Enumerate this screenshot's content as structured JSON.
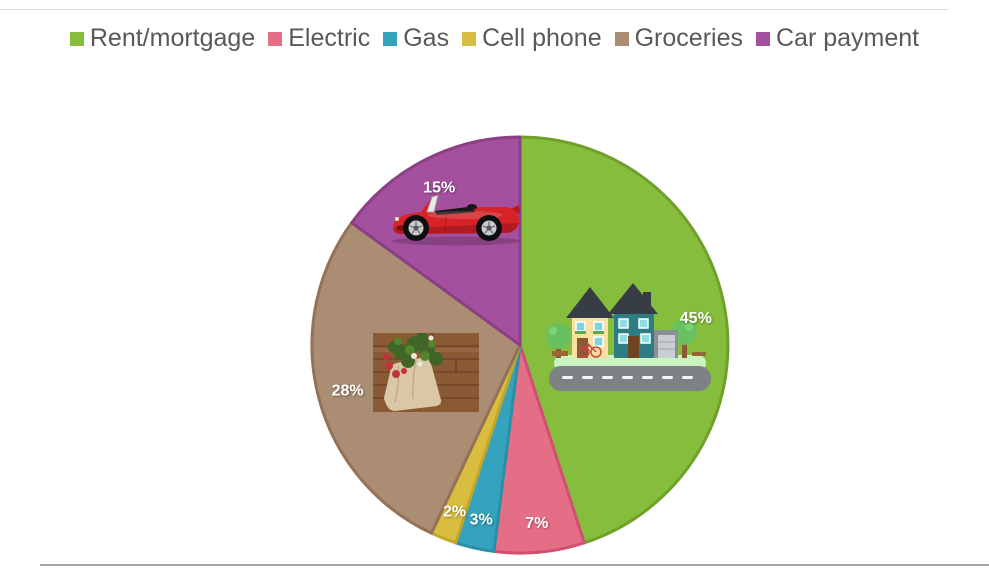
{
  "page": {
    "background": "#FFFFFF",
    "top_rule_color": "#D9D9D9",
    "bottom_rule_color": "#A6A6A6"
  },
  "chart_data": {
    "type": "pie",
    "title": "",
    "legend_position": "top",
    "start_angle_deg": 0,
    "direction": "clockwise",
    "label_color": "#FFFFFF",
    "categories": [
      "Rent/mortgage",
      "Electric",
      "Gas",
      "Cell phone",
      "Groceries",
      "Car payment"
    ],
    "series": [
      {
        "name": "Rent/mortgage",
        "value": 45,
        "label": "45%",
        "color": "#86BD3C",
        "border": "#6FA02C",
        "image": "houses-illustration"
      },
      {
        "name": "Electric",
        "value": 7,
        "label": "7%",
        "color": "#E56E87",
        "border": "#D14F70"
      },
      {
        "name": "Gas",
        "value": 3,
        "label": "3%",
        "color": "#35A3BD",
        "border": "#2A8FA9"
      },
      {
        "name": "Cell phone",
        "value": 2,
        "label": "2%",
        "color": "#D9BD3F",
        "border": "#C2A72F"
      },
      {
        "name": "Groceries",
        "value": 28,
        "label": "28%",
        "color": "#AA8D73",
        "border": "#937257",
        "image": "groceries-photo"
      },
      {
        "name": "Car payment",
        "value": 15,
        "label": "15%",
        "color": "#A4509E",
        "border": "#8C3F85",
        "image": "car-illustration"
      }
    ]
  }
}
